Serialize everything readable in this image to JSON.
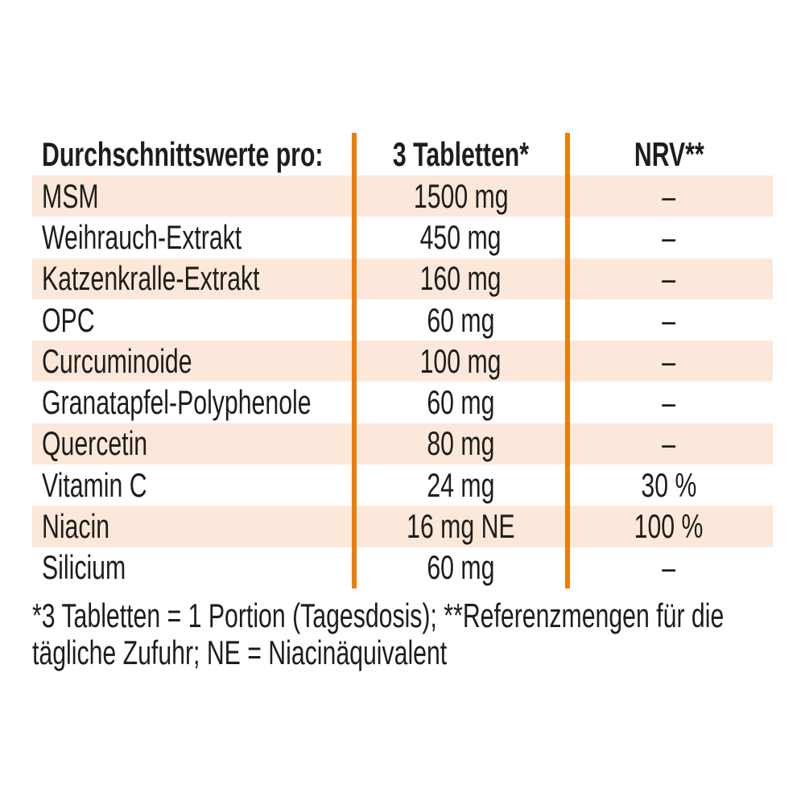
{
  "colors": {
    "page_bg": "#ffffff",
    "row_shade": "#fce8da",
    "accent": "#ef7d05",
    "text": "#1d1d1b"
  },
  "table": {
    "columns": [
      "Durchschnittswerte pro:",
      "3 Tabletten*",
      "NRV**"
    ],
    "rows": [
      {
        "name": "MSM",
        "amount": "1500 mg",
        "nrv": "–"
      },
      {
        "name": "Weihrauch-Extrakt",
        "amount": "450 mg",
        "nrv": "–"
      },
      {
        "name": "Katzenkralle-Extrakt",
        "amount": "160 mg",
        "nrv": "–"
      },
      {
        "name": "OPC",
        "amount": "60 mg",
        "nrv": "–"
      },
      {
        "name": "Curcuminoide",
        "amount": "100 mg",
        "nrv": "–"
      },
      {
        "name": "Granatapfel-Polyphenole",
        "amount": "60 mg",
        "nrv": "–"
      },
      {
        "name": "Quercetin",
        "amount": "80 mg",
        "nrv": "–"
      },
      {
        "name": "Vitamin C",
        "amount": "24 mg",
        "nrv": "30 %"
      },
      {
        "name": "Niacin",
        "amount": "16 mg NE",
        "nrv": "100 %"
      },
      {
        "name": "Silicium",
        "amount": "60 mg",
        "nrv": "–"
      }
    ]
  },
  "footnote": {
    "line1": "*3 Tabletten = 1 Portion (Tagesdosis); **Referenzmengen für die",
    "line2": "tägliche Zufuhr; NE = Niacinäquivalent"
  }
}
